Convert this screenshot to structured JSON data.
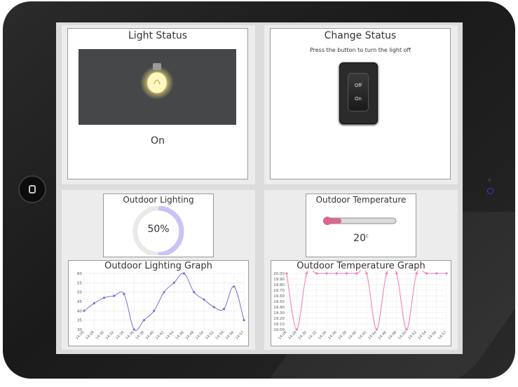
{
  "light_status": {
    "title": "Light Status",
    "state": "On"
  },
  "change_status": {
    "title": "Change Status",
    "instruction": "Press the button to turn the light off",
    "switch_off_label": "Off",
    "switch_on_label": "On"
  },
  "outdoor_lighting": {
    "title": "Outdoor Lighting",
    "value_text": "50%",
    "percent": 50
  },
  "outdoor_temperature": {
    "title": "Outdoor Temperature",
    "value": "20",
    "unit": "c",
    "fill_fraction": 0.22
  },
  "colors": {
    "lighting_line": "#7b6fd0",
    "temperature_line": "#f07ab3",
    "gauge": "#c9c4f5",
    "thermo": "#d8688f"
  },
  "lighting_chart": {
    "title": "Outdoor Lighting Graph",
    "chart_data": {
      "type": "line",
      "title": "Outdoor Lighting Graph",
      "categories": [
        "14:26",
        "14:28",
        "14:30",
        "14:32",
        "14:34",
        "14:36",
        "14:38",
        "14:40",
        "14:42",
        "14:44",
        "14:46",
        "14:48",
        "14:50",
        "14:52",
        "14:54",
        "14:56",
        "14:57"
      ],
      "values": [
        40,
        44,
        47,
        48,
        49,
        30,
        35,
        40,
        50,
        55,
        60,
        50,
        46,
        42,
        41,
        53,
        35
      ],
      "ylim": [
        30,
        60
      ],
      "yticks": [
        30,
        35,
        40,
        45,
        50,
        55,
        60
      ]
    }
  },
  "temperature_chart": {
    "title": "Outdoor Temperature Graph",
    "chart_data": {
      "type": "line",
      "title": "Outdoor Temperature Graph",
      "categories": [
        "14:26",
        "14:28",
        "14:30",
        "14:32",
        "14:34",
        "14:36",
        "14:38",
        "14:40",
        "14:42",
        "14:44",
        "14:46",
        "14:48",
        "14:50",
        "14:52",
        "14:54",
        "14:56",
        "14:57"
      ],
      "values": [
        20,
        19,
        20,
        20,
        20,
        20,
        20,
        20,
        20,
        19,
        20,
        20,
        19,
        20,
        20,
        20,
        20
      ],
      "ylim": [
        19.0,
        20.0
      ],
      "yticks": [
        "19.00",
        "19.10",
        "19.20",
        "19.30",
        "19.40",
        "19.50",
        "19.60",
        "19.70",
        "19.80",
        "19.90",
        "20.00"
      ]
    }
  }
}
